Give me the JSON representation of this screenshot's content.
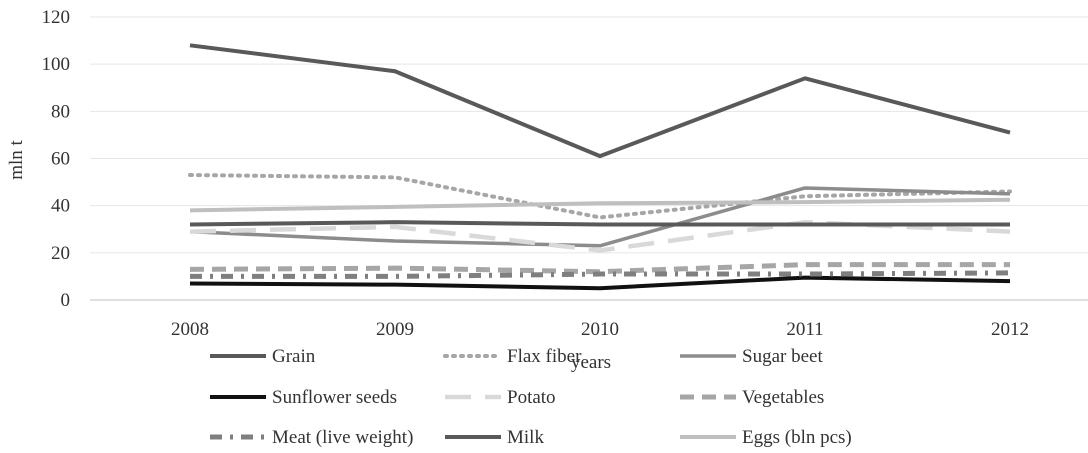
{
  "chart_data": {
    "type": "line",
    "title": "",
    "xlabel": "years",
    "ylabel": "mln t",
    "categories": [
      "2008",
      "2009",
      "2010",
      "2011",
      "2012"
    ],
    "ylim": [
      0,
      120
    ],
    "yticks": [
      "0",
      "20",
      "40",
      "60",
      "80",
      "100",
      "120"
    ],
    "grid": "horizontal",
    "legend_position": "bottom",
    "series": [
      {
        "name": "Grain",
        "values": [
          108,
          97,
          61,
          94,
          71
        ],
        "color": "#595959",
        "width": 4,
        "dash": ""
      },
      {
        "name": "Flax fiber",
        "values": [
          53,
          52,
          35,
          44,
          46
        ],
        "color": "#a6a6a6",
        "width": 4,
        "dash": "2 6",
        "cap": "round"
      },
      {
        "name": "Sugar beet",
        "values": [
          29,
          25,
          23,
          47.5,
          45
        ],
        "color": "#8c8c8c",
        "width": 3.5,
        "dash": ""
      },
      {
        "name": "Sunflower seeds",
        "values": [
          7,
          6.5,
          5,
          9.5,
          8
        ],
        "color": "#111111",
        "width": 4,
        "dash": ""
      },
      {
        "name": "Potato",
        "values": [
          29,
          31,
          21,
          33,
          29
        ],
        "color": "#d9d9d9",
        "width": 4.5,
        "dash": "26 14"
      },
      {
        "name": "Vegetables",
        "values": [
          13,
          13.5,
          12,
          15,
          15
        ],
        "color": "#a6a6a6",
        "width": 5,
        "dash": "14 8"
      },
      {
        "name": "Meat (live weight)",
        "values": [
          10,
          10,
          11,
          11,
          11.5
        ],
        "color": "#7f7f7f",
        "width": 5,
        "dash": "12 8 3 8"
      },
      {
        "name": "Milk",
        "values": [
          32,
          33,
          32,
          32,
          32
        ],
        "color": "#595959",
        "width": 4,
        "dash": ""
      },
      {
        "name": "Eggs (bln pcs)",
        "values": [
          38,
          39.5,
          41,
          41.5,
          42.5
        ],
        "color": "#bfbfbf",
        "width": 4,
        "dash": ""
      }
    ]
  }
}
